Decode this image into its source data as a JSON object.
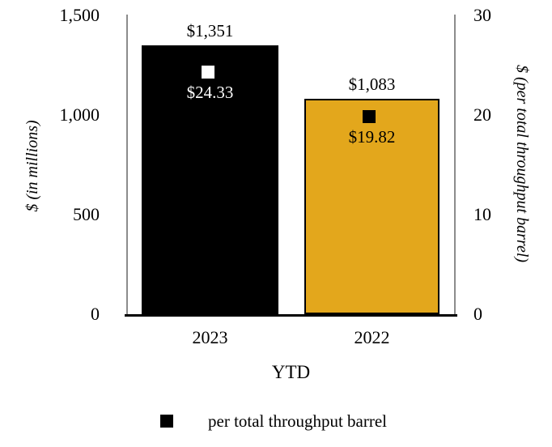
{
  "chart_data": {
    "type": "bar",
    "categories": [
      "2023",
      "2022"
    ],
    "xlabel": "YTD",
    "series": [
      {
        "name": "$ (in millions)",
        "type": "bar",
        "axis": "left",
        "values": [
          1351,
          1083
        ],
        "labels": [
          "$1,351",
          "$1,083"
        ],
        "colors": [
          "#000000",
          "#E3A71C"
        ]
      },
      {
        "name": "per total throughput barrel",
        "type": "point",
        "axis": "right",
        "values": [
          24.33,
          19.82
        ],
        "labels": [
          "$24.33",
          "$19.82"
        ],
        "marker_colors": [
          "#FFFFFF",
          "#000000"
        ],
        "label_colors": [
          "#FFFFFF",
          "#000000"
        ]
      }
    ],
    "left_axis": {
      "label": "$ (in millions)",
      "max": 1500,
      "min": 0,
      "ticks": [
        "1,500",
        "1,000",
        "500",
        "0"
      ]
    },
    "right_axis": {
      "label": "$ (per total throughput barrel)",
      "max": 30,
      "min": 0,
      "ticks": [
        "30",
        "20",
        "10",
        "0"
      ]
    },
    "legend": [
      {
        "marker": "black-square",
        "label": "per total throughput barrel"
      }
    ],
    "grid": false,
    "legend_position": "bottom"
  }
}
